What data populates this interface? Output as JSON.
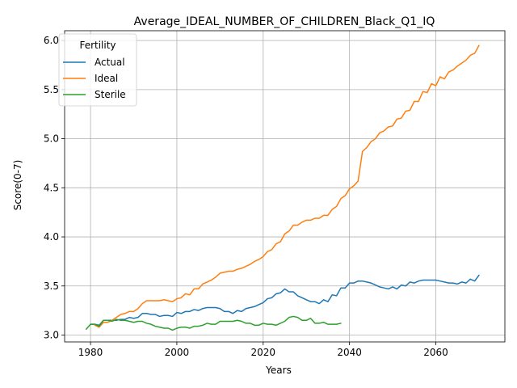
{
  "chart_data": {
    "type": "line",
    "title": "Average_IDEAL_NUMBER_OF_CHILDREN_Black_Q1_IQ",
    "xlabel": "Years",
    "ylabel": "Score(0-7)",
    "xlim": [
      1974,
      2076
    ],
    "ylim": [
      2.93,
      6.1
    ],
    "xticks": [
      1980,
      2000,
      2020,
      2040,
      2060
    ],
    "yticks": [
      3.0,
      3.5,
      4.0,
      4.5,
      5.0,
      5.5,
      6.0
    ],
    "xtick_labels": [
      "1980",
      "2000",
      "2020",
      "2040",
      "2060"
    ],
    "ytick_labels": [
      "3.0",
      "3.5",
      "4.0",
      "4.5",
      "5.0",
      "5.5",
      "6.0"
    ],
    "grid": true,
    "legend": {
      "title": "Fertility",
      "placement": "upper-left"
    },
    "series": [
      {
        "name": "Actual",
        "color": "#1f77b4",
        "x": [
          1980,
          1981,
          1982,
          1983,
          1984,
          1985,
          1986,
          1987,
          1988,
          1989,
          1990,
          1991,
          1992,
          1993,
          1994,
          1995,
          1996,
          1997,
          1998,
          1999,
          2000,
          2001,
          2002,
          2003,
          2004,
          2005,
          2006,
          2007,
          2008,
          2009,
          2010,
          2011,
          2012,
          2013,
          2014,
          2015,
          2016,
          2017,
          2018,
          2019,
          2020,
          2021,
          2022,
          2023,
          2024,
          2025,
          2026,
          2027,
          2028,
          2029,
          2030,
          2031,
          2032,
          2033,
          2034,
          2035,
          2036,
          2037,
          2038,
          2039,
          2040,
          2041,
          2042,
          2043,
          2044,
          2045,
          2046,
          2047,
          2048,
          2049,
          2050,
          2051,
          2052,
          2053,
          2054,
          2055,
          2056,
          2057,
          2058,
          2059,
          2060,
          2061,
          2062,
          2063,
          2064,
          2065,
          2066,
          2067,
          2068,
          2069,
          2070
        ],
        "y": [
          3.11,
          3.11,
          3.1,
          3.15,
          3.15,
          3.15,
          3.15,
          3.16,
          3.16,
          3.18,
          3.17,
          3.18,
          3.22,
          3.22,
          3.21,
          3.21,
          3.19,
          3.2,
          3.2,
          3.19,
          3.23,
          3.22,
          3.24,
          3.24,
          3.26,
          3.25,
          3.27,
          3.28,
          3.28,
          3.28,
          3.27,
          3.24,
          3.24,
          3.22,
          3.25,
          3.24,
          3.27,
          3.28,
          3.29,
          3.31,
          3.33,
          3.37,
          3.38,
          3.42,
          3.43,
          3.47,
          3.44,
          3.44,
          3.4,
          3.38,
          3.36,
          3.34,
          3.34,
          3.32,
          3.36,
          3.34,
          3.41,
          3.4,
          3.48,
          3.48,
          3.53,
          3.53,
          3.55,
          3.55,
          3.54,
          3.53,
          3.51,
          3.49,
          3.48,
          3.47,
          3.49,
          3.47,
          3.51,
          3.5,
          3.54,
          3.53,
          3.55,
          3.56,
          3.56,
          3.56,
          3.56,
          3.55,
          3.54,
          3.53,
          3.53,
          3.52,
          3.54,
          3.53,
          3.57,
          3.55,
          3.61
        ]
      },
      {
        "name": "Ideal",
        "color": "#ff7f0e",
        "x": [
          1981,
          1982,
          1983,
          1984,
          1985,
          1986,
          1987,
          1988,
          1989,
          1990,
          1991,
          1992,
          1993,
          1994,
          1995,
          1996,
          1997,
          1998,
          1999,
          2000,
          2001,
          2002,
          2003,
          2004,
          2005,
          2006,
          2007,
          2008,
          2009,
          2010,
          2011,
          2012,
          2013,
          2014,
          2015,
          2016,
          2017,
          2018,
          2019,
          2020,
          2021,
          2022,
          2023,
          2024,
          2025,
          2026,
          2027,
          2028,
          2029,
          2030,
          2031,
          2032,
          2033,
          2034,
          2035,
          2036,
          2037,
          2038,
          2039,
          2040,
          2041,
          2042,
          2043,
          2044,
          2045,
          2046,
          2047,
          2048,
          2049,
          2050,
          2051,
          2052,
          2053,
          2054,
          2055,
          2056,
          2057,
          2058,
          2059,
          2060,
          2061,
          2062,
          2063,
          2064,
          2065,
          2066,
          2067,
          2068,
          2069,
          2070
        ],
        "y": [
          3.1,
          3.08,
          3.13,
          3.13,
          3.15,
          3.18,
          3.21,
          3.22,
          3.24,
          3.24,
          3.27,
          3.32,
          3.35,
          3.35,
          3.35,
          3.35,
          3.36,
          3.35,
          3.34,
          3.37,
          3.38,
          3.42,
          3.41,
          3.47,
          3.47,
          3.52,
          3.54,
          3.56,
          3.59,
          3.63,
          3.64,
          3.65,
          3.65,
          3.67,
          3.68,
          3.7,
          3.72,
          3.75,
          3.77,
          3.8,
          3.85,
          3.87,
          3.93,
          3.95,
          4.03,
          4.06,
          4.12,
          4.12,
          4.15,
          4.17,
          4.17,
          4.19,
          4.19,
          4.22,
          4.22,
          4.28,
          4.31,
          4.39,
          4.42,
          4.49,
          4.52,
          4.57,
          4.87,
          4.91,
          4.97,
          5.0,
          5.06,
          5.08,
          5.12,
          5.13,
          5.2,
          5.21,
          5.28,
          5.29,
          5.38,
          5.38,
          5.48,
          5.47,
          5.56,
          5.54,
          5.63,
          5.61,
          5.68,
          5.7,
          5.74,
          5.77,
          5.8,
          5.85,
          5.87,
          5.95
        ]
      },
      {
        "name": "Sterile",
        "color": "#2ca02c",
        "x": [
          1979,
          1980,
          1981,
          1982,
          1983,
          1984,
          1985,
          1986,
          1987,
          1988,
          1989,
          1990,
          1991,
          1992,
          1993,
          1994,
          1995,
          1996,
          1997,
          1998,
          1999,
          2000,
          2001,
          2002,
          2003,
          2004,
          2005,
          2006,
          2007,
          2008,
          2009,
          2010,
          2011,
          2012,
          2013,
          2014,
          2015,
          2016,
          2017,
          2018,
          2019,
          2020,
          2021,
          2022,
          2023,
          2024,
          2025,
          2026,
          2027,
          2028,
          2029,
          2030,
          2031,
          2032,
          2033,
          2034,
          2035,
          2036,
          2037,
          2038
        ],
        "y": [
          3.06,
          3.11,
          3.11,
          3.09,
          3.15,
          3.15,
          3.14,
          3.16,
          3.15,
          3.15,
          3.14,
          3.13,
          3.14,
          3.14,
          3.12,
          3.11,
          3.09,
          3.08,
          3.07,
          3.07,
          3.05,
          3.07,
          3.08,
          3.08,
          3.07,
          3.09,
          3.09,
          3.1,
          3.12,
          3.11,
          3.11,
          3.14,
          3.14,
          3.14,
          3.14,
          3.15,
          3.14,
          3.12,
          3.12,
          3.1,
          3.1,
          3.12,
          3.11,
          3.11,
          3.1,
          3.12,
          3.14,
          3.18,
          3.19,
          3.18,
          3.15,
          3.15,
          3.17,
          3.12,
          3.12,
          3.13,
          3.11,
          3.11,
          3.11,
          3.12
        ]
      }
    ]
  }
}
